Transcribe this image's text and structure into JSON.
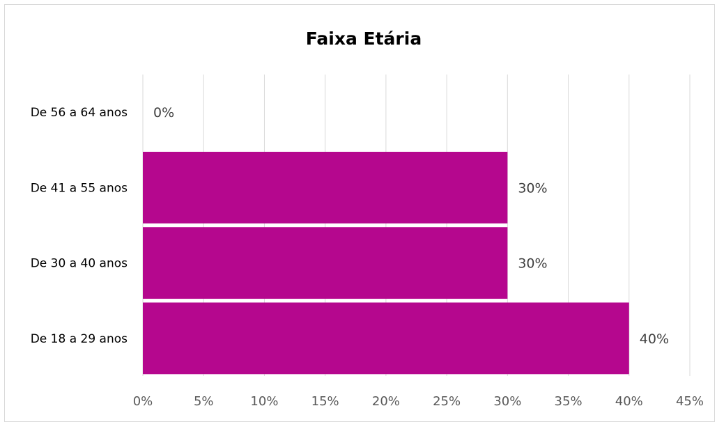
{
  "chart_data": {
    "type": "bar",
    "orientation": "horizontal",
    "title": "Faixa Etária",
    "xlabel": "",
    "ylabel": "",
    "categories": [
      "De 56 a 64 anos",
      "De 41 a 55 anos",
      "De 30 a 40 anos",
      "De 18 a 29 anos"
    ],
    "values": [
      0,
      0.3,
      0.3,
      0.4
    ],
    "data_labels": [
      "0%",
      "30%",
      "30%",
      "40%"
    ],
    "xlim": [
      0,
      0.45
    ],
    "x_ticks": [
      "0%",
      "5%",
      "10%",
      "15%",
      "20%",
      "25%",
      "30%",
      "35%",
      "40%",
      "45%"
    ],
    "grid": true,
    "legend": "none",
    "bar_color": "#B5078E"
  }
}
